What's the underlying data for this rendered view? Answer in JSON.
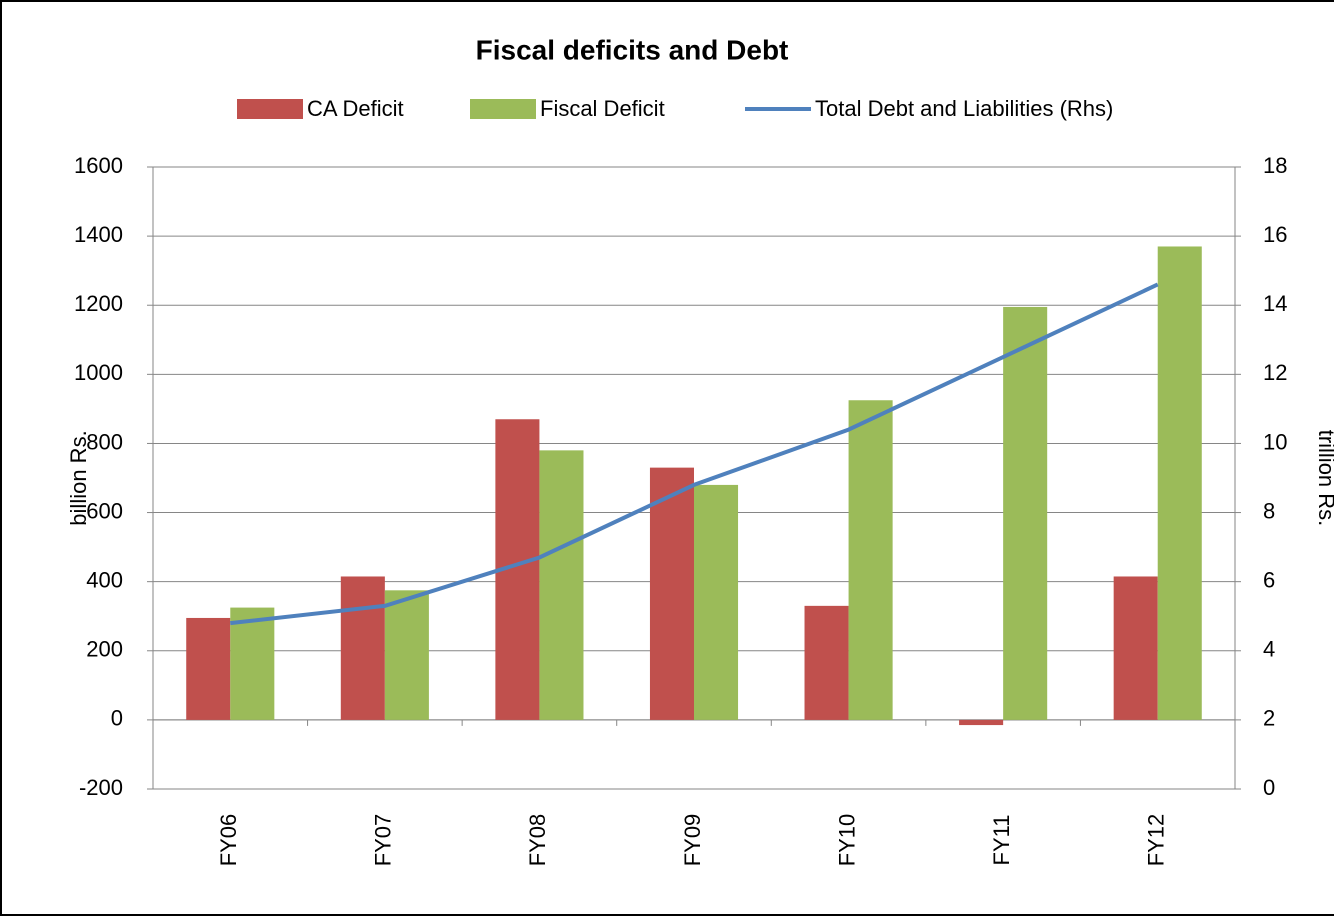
{
  "chart_data": {
    "type": "bar-line",
    "title": "Fiscal deficits and Debt",
    "categories": [
      "FY06",
      "FY07",
      "FY08",
      "FY09",
      "FY10",
      "FY11",
      "FY12"
    ],
    "series": [
      {
        "name": "CA Deficit",
        "color": "#c0504d",
        "type": "bar",
        "values": [
          295,
          415,
          870,
          730,
          330,
          -15,
          415
        ]
      },
      {
        "name": "Fiscal Deficit",
        "color": "#9bbb59",
        "type": "bar",
        "values": [
          325,
          375,
          780,
          680,
          925,
          1195,
          1370
        ]
      },
      {
        "name": "Total Debt and Liabilities (Rhs)",
        "color": "#4f81bd",
        "type": "line",
        "axis": "y2",
        "values": [
          4.8,
          5.3,
          6.7,
          8.8,
          10.4,
          12.5,
          14.6
        ]
      }
    ],
    "ylabel": "billion Rs.",
    "y2label": "trillion Rs.",
    "ylim": [
      -200,
      1600
    ],
    "yticks": [
      -200,
      0,
      200,
      400,
      600,
      800,
      1000,
      1200,
      1400,
      1600
    ],
    "y2lim": [
      0,
      18
    ],
    "y2ticks": [
      0,
      2,
      4,
      6,
      8,
      10,
      12,
      14,
      16,
      18
    ],
    "grid": true
  }
}
